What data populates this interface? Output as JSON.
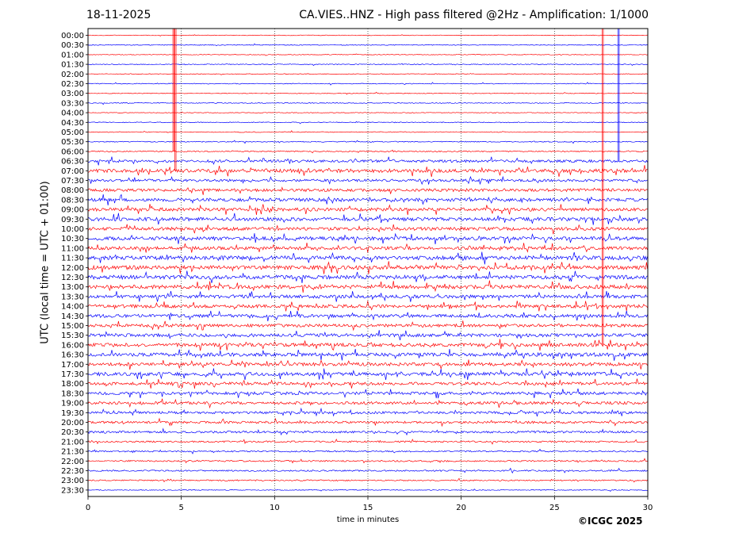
{
  "header": {
    "date": "18-11-2025",
    "title": "CA.VIES..HNZ - High pass filtered @2Hz - Amplification: 1/1000"
  },
  "footer": {
    "credit": "©ICGC 2025"
  },
  "chart_data": {
    "type": "line",
    "title": "CA.VIES..HNZ - High pass filtered @2Hz - Amplification: 1/1000",
    "xlabel": "time in minutes",
    "ylabel": "UTC (local time = UTC + 01:00)",
    "xlim": [
      0,
      30
    ],
    "x_ticks": [
      0,
      5,
      10,
      15,
      20,
      25,
      30
    ],
    "grid": "vertical dotted at 5, 10, 15, 20, 25",
    "colors": {
      "even_rows": "#ff0000",
      "odd_rows": "#0000ff"
    },
    "row_labels": [
      "00:00",
      "00:30",
      "01:00",
      "01:30",
      "02:00",
      "02:30",
      "03:00",
      "03:30",
      "04:00",
      "04:30",
      "05:00",
      "05:30",
      "06:00",
      "06:30",
      "07:00",
      "07:30",
      "08:00",
      "08:30",
      "09:00",
      "09:30",
      "10:00",
      "10:30",
      "11:00",
      "11:30",
      "12:00",
      "12:30",
      "13:00",
      "13:30",
      "14:00",
      "14:30",
      "15:00",
      "15:30",
      "16:00",
      "16:30",
      "17:00",
      "17:30",
      "18:00",
      "18:30",
      "19:00",
      "19:30",
      "20:00",
      "20:30",
      "21:00",
      "21:30",
      "22:00",
      "22:30",
      "23:00",
      "23:30"
    ],
    "noise_levels": [
      0.4,
      0.5,
      0.4,
      0.5,
      0.4,
      0.5,
      0.4,
      0.5,
      0.4,
      0.5,
      0.5,
      0.6,
      0.7,
      1.6,
      2.2,
      1.5,
      1.8,
      2.0,
      2.0,
      2.2,
      2.0,
      2.2,
      2.0,
      2.4,
      2.4,
      2.4,
      2.4,
      2.0,
      2.0,
      2.0,
      1.8,
      2.0,
      2.2,
      2.2,
      2.0,
      2.2,
      1.8,
      1.8,
      1.7,
      1.5,
      1.4,
      1.3,
      1.0,
      0.9,
      0.9,
      0.9,
      0.8,
      0.5
    ],
    "large_spikes": [
      {
        "row_from": 0,
        "row_to": 12,
        "minute": 4.55
      },
      {
        "row_from": 0,
        "row_to": 14,
        "minute": 4.65
      },
      {
        "row_from": 0,
        "row_to": 32,
        "minute": 27.55
      },
      {
        "row_from": 0,
        "row_to": 13,
        "minute": 28.4
      }
    ]
  }
}
